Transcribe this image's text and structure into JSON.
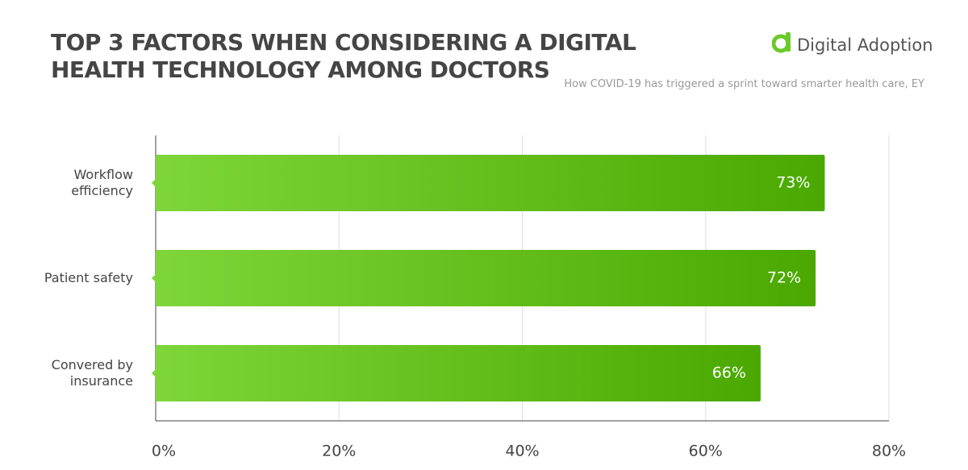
{
  "chart_data": {
    "type": "barh",
    "title": "TOP 3 FACTORS WHEN CONSIDERING A DIGITAL HEALTH TECHNOLOGY AMONG DOCTORS",
    "source": "How COVID-19 has triggered a sprint toward smarter health care, EY",
    "brand": "Digital Adoption",
    "categories": [
      "Workflow efficiency",
      "Patient safety",
      "Convered by insurance"
    ],
    "values": [
      73,
      72,
      66
    ],
    "value_labels": [
      "73%",
      "72%",
      "66%"
    ],
    "color": [
      "#7ed63a",
      "#4aa800"
    ],
    "xlim": [
      0,
      80
    ],
    "xticks": [
      {
        "value": 0,
        "label": "0%"
      },
      {
        "value": 20,
        "label": "20%"
      },
      {
        "value": 40,
        "label": "40%"
      },
      {
        "value": 60,
        "label": "60%"
      },
      {
        "value": 80,
        "label": "80%"
      }
    ],
    "grid": true
  }
}
